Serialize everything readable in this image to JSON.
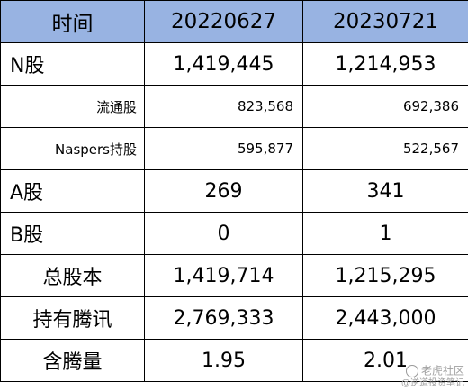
{
  "table": {
    "header": [
      "时间",
      "20220627",
      "20230721"
    ],
    "rows": [
      {
        "label": "N股",
        "v1": "1,419,445",
        "v2": "1,214,953",
        "style": "big-left"
      },
      {
        "label": "流通股",
        "v1": "823,568",
        "v2": "692,386",
        "style": "small"
      },
      {
        "label": "Naspers持股",
        "v1": "595,877",
        "v2": "522,567",
        "style": "small"
      },
      {
        "label": "A股",
        "v1": "269",
        "v2": "341",
        "style": "big-left"
      },
      {
        "label": "B股",
        "v1": "0",
        "v2": "1",
        "style": "big-left"
      },
      {
        "label": "总股本",
        "v1": "1,419,714",
        "v2": "1,215,295",
        "style": "big"
      },
      {
        "label": "持有腾讯",
        "v1": "2,769,333",
        "v2": "2,443,000",
        "style": "big"
      },
      {
        "label": "含腾量",
        "v1": "1.95",
        "v2": "2.01",
        "style": "big"
      }
    ]
  },
  "watermark": {
    "line1": "老虎社区",
    "line2": "@逆道投资笔记"
  },
  "colors": {
    "header_bg": "#98b3e2",
    "border": "#000000"
  }
}
